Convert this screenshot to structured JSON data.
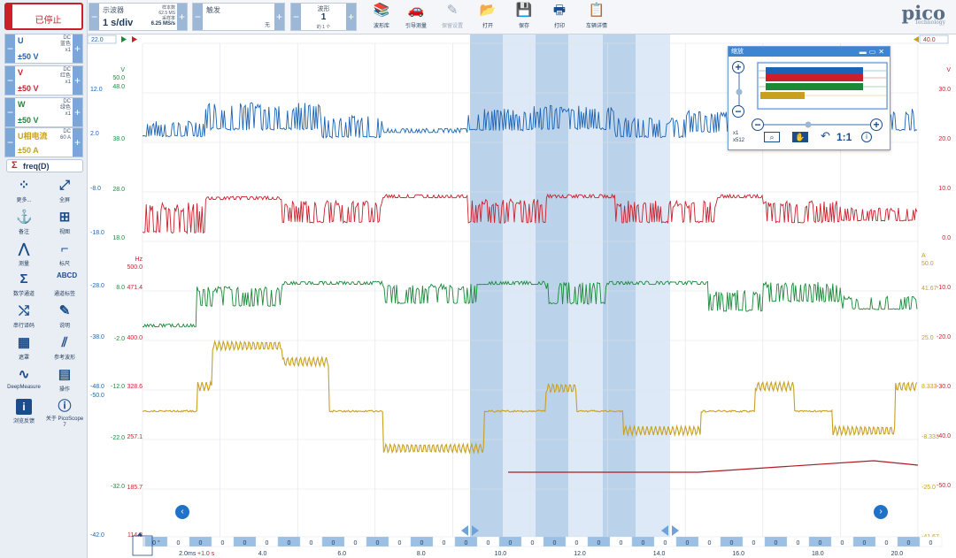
{
  "left": {
    "stop_label": "已停止",
    "channels": [
      {
        "name": "U",
        "coupling": "DC",
        "color_name": "蓝色",
        "probe": "x1",
        "range": "±50 V",
        "color": "#1a63b5"
      },
      {
        "name": "V",
        "coupling": "DC",
        "color_name": "红色",
        "probe": "x1",
        "range": "±50 V",
        "color": "#cc1f2c"
      },
      {
        "name": "W",
        "coupling": "DC",
        "color_name": "绿色",
        "probe": "x1",
        "range": "±50 V",
        "color": "#1a8a3a"
      },
      {
        "name": "U相电流",
        "coupling": "DC",
        "color_name": "60 A",
        "probe": "",
        "range": "±50 A",
        "color": "#c8a020"
      }
    ],
    "math_label": "freq(D)",
    "tools": [
      {
        "icon": "⁘",
        "label": "更多..."
      },
      {
        "icon": "⤢",
        "label": "全屏"
      },
      {
        "icon": "⚓",
        "label": "备注"
      },
      {
        "icon": "⊞",
        "label": "视图"
      },
      {
        "icon": "⋀",
        "label": "测量"
      },
      {
        "icon": "⌐",
        "label": "标尺"
      },
      {
        "icon": "Σ",
        "label": "数学通道"
      },
      {
        "icon": "ABCD",
        "label": "通道标签"
      },
      {
        "icon": "⤭",
        "label": "串行译码"
      },
      {
        "icon": "✎",
        "label": "说明"
      },
      {
        "icon": "▦",
        "label": "遮罩"
      },
      {
        "icon": "⫽",
        "label": "参考波形"
      },
      {
        "icon": "∿",
        "label": "DeepMeasure"
      },
      {
        "icon": "▤",
        "label": "操作"
      },
      {
        "icon": "i",
        "label": "浏览反馈"
      },
      {
        "icon": "ⓘ",
        "label": "关于 PicoScope 7"
      }
    ]
  },
  "toolbar": {
    "scope_title": "示波器",
    "timebase": "1 s/div",
    "samples_label": "样本数",
    "samples_value": "62.5 MS",
    "rate_label": "采样率",
    "rate_value": "6.25 MS/s",
    "trigger_title": "触发",
    "trigger_value": "无",
    "waveform_title": "波形",
    "waveform_value": "1",
    "waveform_of": "的 1 个",
    "buttons": [
      {
        "icon": "📚",
        "label": "波形库",
        "enabled": true
      },
      {
        "icon": "🚗",
        "label": "引导测量",
        "enabled": true
      },
      {
        "icon": "✎",
        "label": "保留设置",
        "enabled": false
      },
      {
        "icon": "📂",
        "label": "打开",
        "enabled": true
      },
      {
        "icon": "💾",
        "label": "保存",
        "enabled": true
      },
      {
        "icon": "🖶",
        "label": "打印",
        "enabled": true
      },
      {
        "icon": "📋",
        "label": "车辆详情",
        "enabled": true
      }
    ],
    "logo_text": "pico",
    "logo_sub": "Technology"
  },
  "scope": {
    "left_axis_outer": [
      "12.0",
      "2.0",
      "-8.0",
      "-18.0",
      "-28.0",
      "-38.0",
      "-48.0",
      "-50.0",
      "-42.0"
    ],
    "left_axis_v": [
      "V",
      "50.0",
      "48.0",
      "38.0",
      "28.0",
      "18.0",
      "8.0",
      "-2.0",
      "-12.0",
      "-22.0",
      "-32.0"
    ],
    "left_axis_hz": [
      "Hz",
      "500.0",
      "471.4",
      "400.0",
      "328.6",
      "257.1",
      "185.7",
      "114.3"
    ],
    "right_axis_v": [
      "V",
      "30.0",
      "20.0",
      "10.0",
      "0.0",
      "-10.0",
      "-20.0",
      "-30.0",
      "-40.0",
      "-50.0"
    ],
    "right_axis_a": [
      "A",
      "50.0",
      "41.67",
      "25.0",
      "8.333",
      "-8.333",
      "-25.0",
      "-41.67"
    ],
    "top_left_marker": "22.0",
    "top_right_marker": "40.0",
    "x_ticks": [
      "2.0",
      "4.0",
      "6.0",
      "8.0",
      "10.0",
      "12.0",
      "14.0",
      "16.0",
      "18.0",
      "20.0"
    ],
    "x_unit_first": "ms",
    "x_offset_label": "+1.0 s",
    "counter_value": "0",
    "counter_first": "0 °",
    "colors": {
      "blue": "#1a63b5",
      "red": "#cc1f2c",
      "green": "#1a8a3a",
      "gold": "#c8a020",
      "grid": "#dde3ea"
    }
  },
  "zoom": {
    "title": "缩放",
    "scale_x": "x1",
    "scale_y": "x512",
    "ratio": "1:1"
  }
}
